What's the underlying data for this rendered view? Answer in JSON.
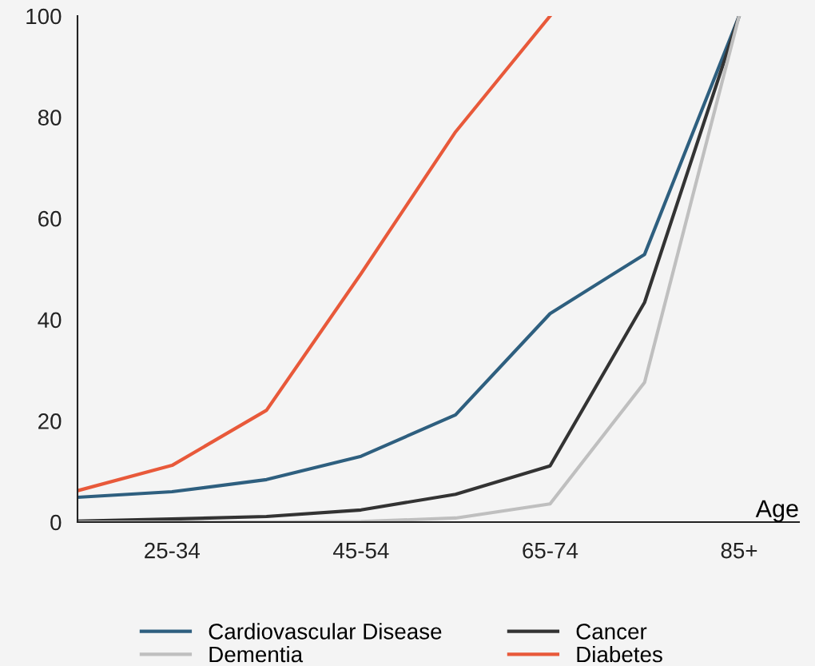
{
  "chart_data": {
    "type": "line",
    "xlabel": "Age",
    "categories": [
      null,
      "25-34",
      null,
      "45-54",
      null,
      "65-74",
      null,
      "85+"
    ],
    "series": [
      {
        "name": "Cardiovascular Disease",
        "color": "#2e5f7f",
        "values": [
          4.9,
          6.0,
          8.4,
          13.0,
          21.2,
          41.2,
          52.9,
          100
        ]
      },
      {
        "name": "Cancer",
        "color": "#333333",
        "values": [
          0.2,
          0.6,
          1.1,
          2.4,
          5.5,
          11.1,
          43.4,
          100
        ]
      },
      {
        "name": "Dementia",
        "color": "#bfbfbf",
        "values": [
          0,
          0,
          0,
          0.1,
          0.8,
          3.6,
          27.6,
          100
        ]
      },
      {
        "name": "Diabetes",
        "color": "#e8593a",
        "values": [
          6.2,
          11.2,
          22.1,
          49.1,
          77.1,
          100,
          null,
          null
        ]
      }
    ],
    "ylim": [
      0,
      100
    ],
    "yticks": [
      0,
      20,
      40,
      60,
      80,
      100
    ],
    "grid": false,
    "legend": "bottom",
    "marker": "none",
    "line_style": "solid"
  }
}
